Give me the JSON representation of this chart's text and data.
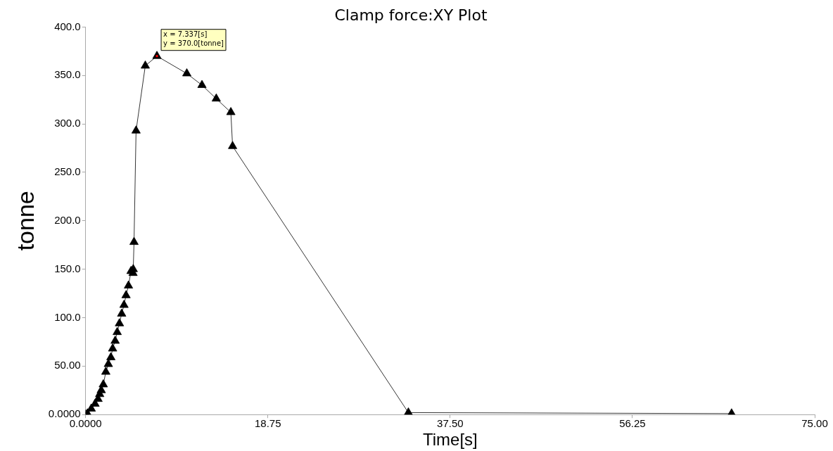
{
  "chart_data": {
    "type": "line",
    "title": "Clamp force:XY Plot",
    "xlabel": "Time[s]",
    "ylabel": "tonne",
    "x": [
      0,
      0.19,
      0.58,
      0.97,
      1.28,
      1.45,
      1.61,
      1.82,
      2.08,
      2.34,
      2.6,
      2.78,
      3.04,
      3.25,
      3.48,
      3.71,
      3.95,
      4.16,
      4.41,
      4.67,
      4.88,
      4.9,
      4.98,
      5.19,
      6.14,
      7.337,
      10.41,
      11.97,
      13.44,
      14.94,
      15.12,
      33.2,
      66.45
    ],
    "values": [
      0,
      1,
      6,
      11,
      16,
      21,
      25,
      31,
      44,
      52,
      59,
      68,
      76,
      85,
      94,
      104,
      113,
      123,
      133,
      148,
      146,
      150,
      178,
      293,
      360,
      370,
      352,
      340,
      326,
      312,
      277,
      2,
      1
    ],
    "color": "#000000",
    "marker": "triangle",
    "line_style": "solid",
    "grid": false,
    "legend": false,
    "xlim": [
      0,
      75
    ],
    "ylim": [
      0,
      400
    ],
    "xticks": [
      {
        "value": 0,
        "label": "0.0000"
      },
      {
        "value": 18.75,
        "label": "18.75"
      },
      {
        "value": 37.5,
        "label": "37.50"
      },
      {
        "value": 56.25,
        "label": "56.25"
      },
      {
        "value": 75,
        "label": "75.00"
      }
    ],
    "yticks": [
      {
        "value": 0,
        "label": "0.0000"
      },
      {
        "value": 50,
        "label": "50.00"
      },
      {
        "value": 100,
        "label": "100.0"
      },
      {
        "value": 150,
        "label": "150.0"
      },
      {
        "value": 200,
        "label": "200.0"
      },
      {
        "value": 250,
        "label": "250.0"
      },
      {
        "value": 300,
        "label": "300.0"
      },
      {
        "value": 350,
        "label": "350.0"
      },
      {
        "value": 400,
        "label": "400.0"
      }
    ],
    "annotations": [
      {
        "text": "x = 7.337[s]\ny = 370.0[tonne]",
        "x": 7.337,
        "y": 370
      }
    ]
  }
}
